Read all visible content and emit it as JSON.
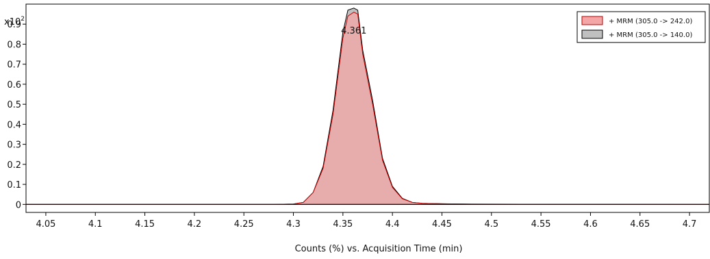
{
  "chart_data": {
    "type": "area",
    "title": "",
    "xlabel": "Counts (%) vs. Acquisition Time (min)",
    "ylabel": "",
    "y_multiplier_base": "x10",
    "y_multiplier_exp": "2",
    "xlim": [
      4.03,
      4.72
    ],
    "ylim": [
      -0.04,
      1.0
    ],
    "x_ticks": [
      4.05,
      4.1,
      4.15,
      4.2,
      4.25,
      4.3,
      4.35,
      4.4,
      4.45,
      4.5,
      4.55,
      4.6,
      4.65,
      4.7
    ],
    "x_tick_labels": [
      "4.05",
      "4.1",
      "4.15",
      "4.2",
      "4.25",
      "4.3",
      "4.35",
      "4.4",
      "4.45",
      "4.5",
      "4.55",
      "4.6",
      "4.65",
      "4.7"
    ],
    "y_ticks": [
      0,
      0.1,
      0.2,
      0.3,
      0.4,
      0.5,
      0.6,
      0.7,
      0.8,
      0.9
    ],
    "y_tick_labels": [
      "0",
      "0.1",
      "0.2",
      "0.3",
      "0.4",
      "0.5",
      "0.6",
      "0.7",
      "0.8",
      "0.9"
    ],
    "grid": false,
    "legend_position": "top-right",
    "annotations": [
      {
        "text": "4.361",
        "x": 4.361
      }
    ],
    "series": [
      {
        "name": "+ MRM (305.0 -> 140.0)",
        "fill": "#c0c0c0",
        "stroke": "#000000",
        "x": [
          4.03,
          4.28,
          4.3,
          4.31,
          4.32,
          4.33,
          4.34,
          4.35,
          4.355,
          4.361,
          4.365,
          4.37,
          4.38,
          4.39,
          4.4,
          4.41,
          4.42,
          4.43,
          4.45,
          4.48,
          4.72
        ],
        "y": [
          0,
          0,
          0.002,
          0.01,
          0.06,
          0.19,
          0.47,
          0.86,
          0.97,
          0.98,
          0.97,
          0.77,
          0.52,
          0.23,
          0.09,
          0.03,
          0.01,
          0.005,
          0.003,
          0.001,
          0
        ]
      },
      {
        "name": "+ MRM (305.0 -> 242.0)",
        "fill": "#f4a6a6",
        "stroke": "#c00000",
        "x": [
          4.03,
          4.28,
          4.3,
          4.31,
          4.32,
          4.33,
          4.34,
          4.35,
          4.355,
          4.361,
          4.365,
          4.37,
          4.38,
          4.39,
          4.4,
          4.41,
          4.42,
          4.43,
          4.45,
          4.48,
          4.53,
          4.72
        ],
        "y": [
          0,
          0,
          0.002,
          0.01,
          0.06,
          0.18,
          0.45,
          0.83,
          0.94,
          0.96,
          0.95,
          0.75,
          0.5,
          0.22,
          0.085,
          0.028,
          0.01,
          0.005,
          0.003,
          0.002,
          0.001,
          0
        ]
      }
    ]
  }
}
